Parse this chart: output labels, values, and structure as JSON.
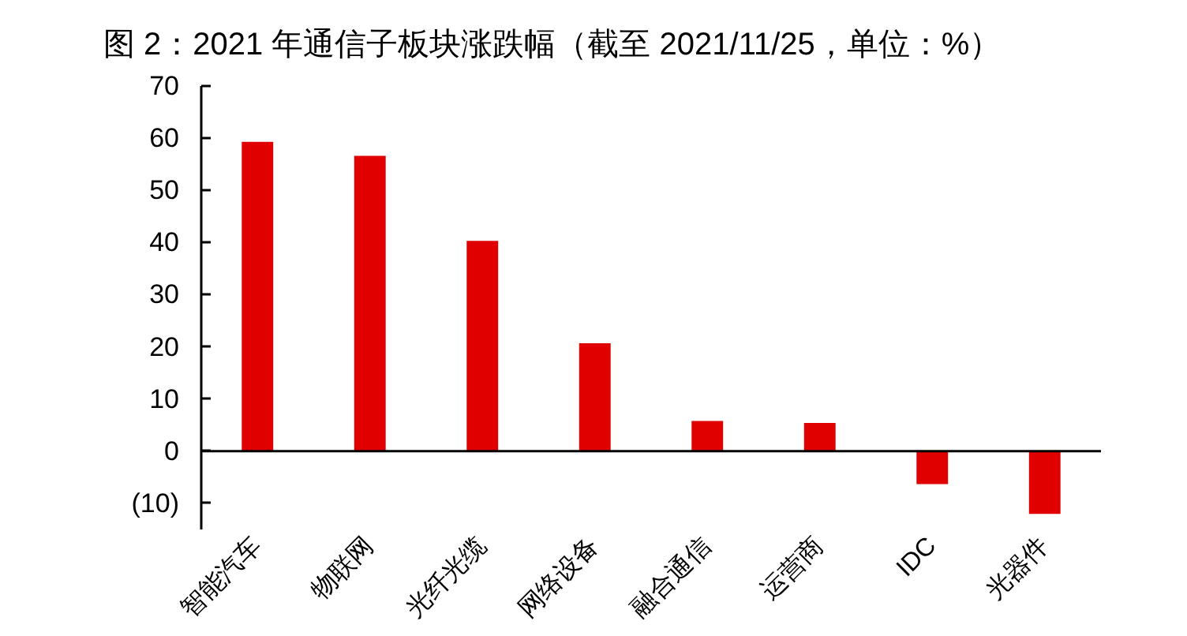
{
  "chart_data": {
    "type": "bar",
    "title": "图 2：2021 年通信子板块涨跌幅（截至 2021/11/25，单位：%）",
    "categories": [
      "智能汽车",
      "物联网",
      "光纤光缆",
      "网络设备",
      "融合通信",
      "运营商",
      "IDC",
      "光器件"
    ],
    "values": [
      59.3,
      56.6,
      40.3,
      20.7,
      5.8,
      5.4,
      -6.3,
      -12.0
    ],
    "color": "#e00000",
    "ylim": [
      -15,
      70
    ],
    "yticks": [
      {
        "value": -10,
        "label": "(10)"
      },
      0,
      10,
      20,
      30,
      40,
      50,
      60,
      70
    ]
  }
}
